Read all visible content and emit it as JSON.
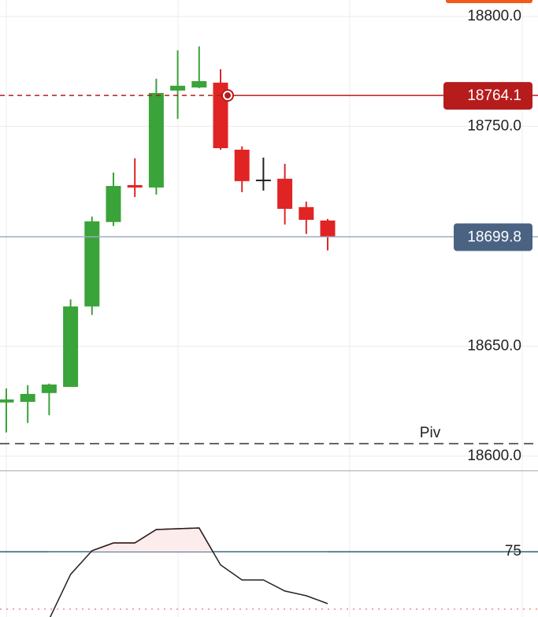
{
  "chart_data": [
    {
      "type": "candlestick",
      "open": [
        18624.4,
        18624.7,
        18628.7,
        18631.5,
        18668.1,
        18706.5,
        18723.3,
        18722.2,
        18766.3,
        18767.7,
        18769.9,
        18739.4,
        18725.8,
        18726.2,
        18713.3,
        18707.2
      ],
      "high": [
        18630.8,
        18632.3,
        18633.0,
        18671.3,
        18709.0,
        18729.0,
        18735.5,
        18771.7,
        18784.6,
        18786.4,
        18776.0,
        18740.9,
        18735.8,
        18733.0,
        18715.8,
        18707.9
      ],
      "low": [
        18610.8,
        18615.1,
        18618.6,
        18631.5,
        18664.2,
        18704.7,
        18717.9,
        18719.0,
        18753.4,
        18767.4,
        18739.4,
        18720.1,
        18720.8,
        18705.4,
        18701.1,
        18693.6
      ],
      "close": [
        18625.8,
        18628.3,
        18632.6,
        18668.1,
        18706.8,
        18722.9,
        18722.2,
        18765.2,
        18768.5,
        18770.6,
        18740.1,
        18725.1,
        18725.8,
        18712.5,
        18707.5,
        18699.8
      ],
      "up_color": "#3aa33a",
      "down_color": "#e02424",
      "flat_color": "#222222",
      "ylim": [
        18593.5,
        18807.5
      ],
      "yticks": [
        {
          "value": 18600,
          "label": "18600.0"
        },
        {
          "value": 18650,
          "label": "18650.0"
        },
        {
          "value": 18750,
          "label": "18750.0"
        },
        {
          "value": 18800,
          "label": "18800.0"
        }
      ],
      "grid": true,
      "price_lines": [
        {
          "value": 18764.1,
          "color": "#b71c1c"
        },
        {
          "value": 18699.8,
          "color": "#4a6382"
        }
      ],
      "pivot": {
        "label": "Piv",
        "value": 18605.7
      }
    },
    {
      "type": "line",
      "values": [
        16,
        55.2,
        75.9,
        82.7,
        82.7,
        94.4,
        95.1,
        95.8,
        63.5,
        50.4,
        50.4,
        40.7,
        36.6,
        29.7
      ],
      "color": "#222222",
      "over_color": "#e02424",
      "ylim": [
        18,
        144
      ],
      "yticks": [
        75
      ],
      "level_color": "#2b5f75"
    }
  ]
}
